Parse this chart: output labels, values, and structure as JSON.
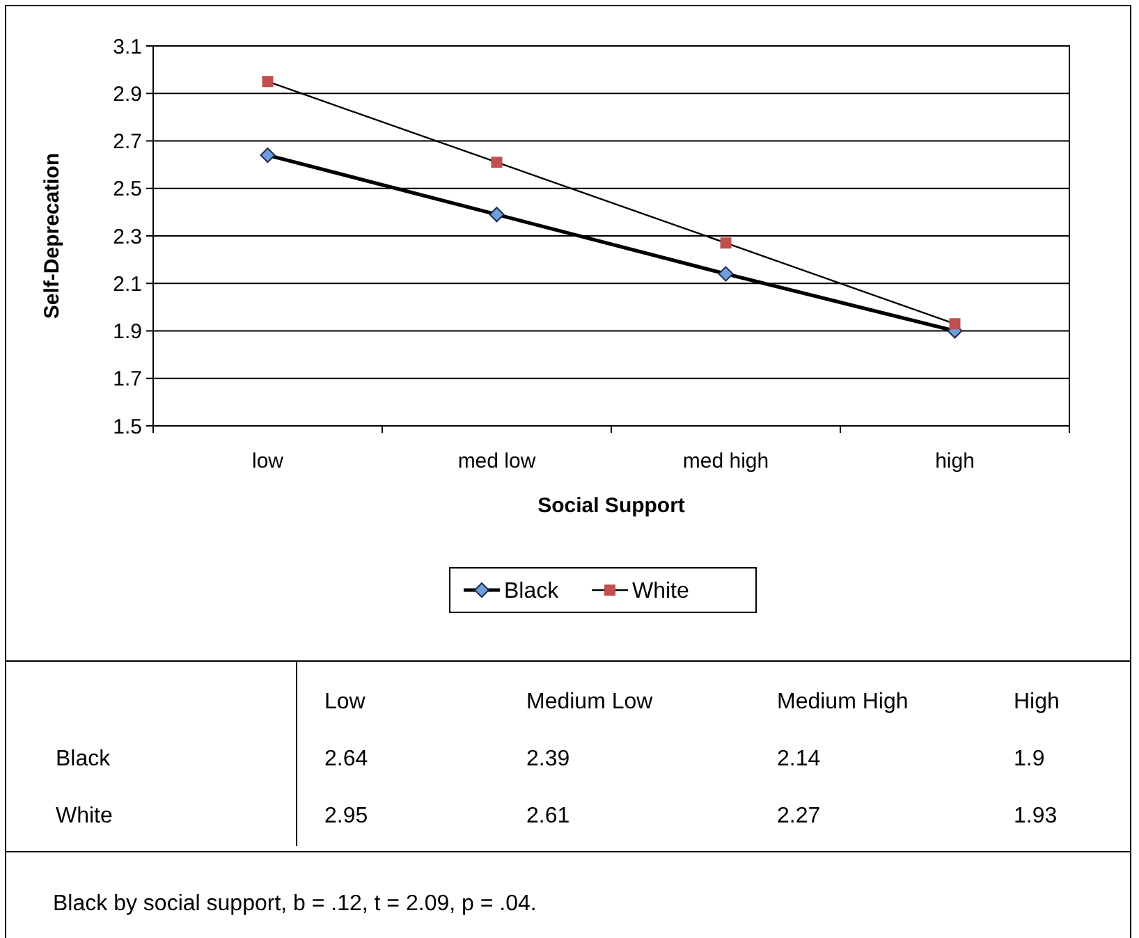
{
  "chart_data": {
    "type": "line",
    "xlabel": "Social Support",
    "ylabel": "Self-Deprecation",
    "categories": [
      "low",
      "med low",
      "med high",
      "high"
    ],
    "series": [
      {
        "name": "Black",
        "color": "#6f9fd8",
        "marker": "diamond",
        "values": [
          2.64,
          2.39,
          2.14,
          1.9
        ]
      },
      {
        "name": "White",
        "color": "#c0504d",
        "marker": "square",
        "values": [
          2.95,
          2.61,
          2.27,
          1.93
        ]
      }
    ],
    "ylim": [
      1.5,
      3.1
    ],
    "yticks": [
      1.5,
      1.7,
      1.9,
      2.1,
      2.3,
      2.5,
      2.7,
      2.9,
      3.1
    ],
    "grid": "y",
    "legend": "bottom",
    "data_labels": true,
    "annotations": [
      "Low",
      "Medium Low",
      "Medium High",
      "High",
      "Black by social support, b = .12, t = 2.09, p = .04."
    ]
  }
}
